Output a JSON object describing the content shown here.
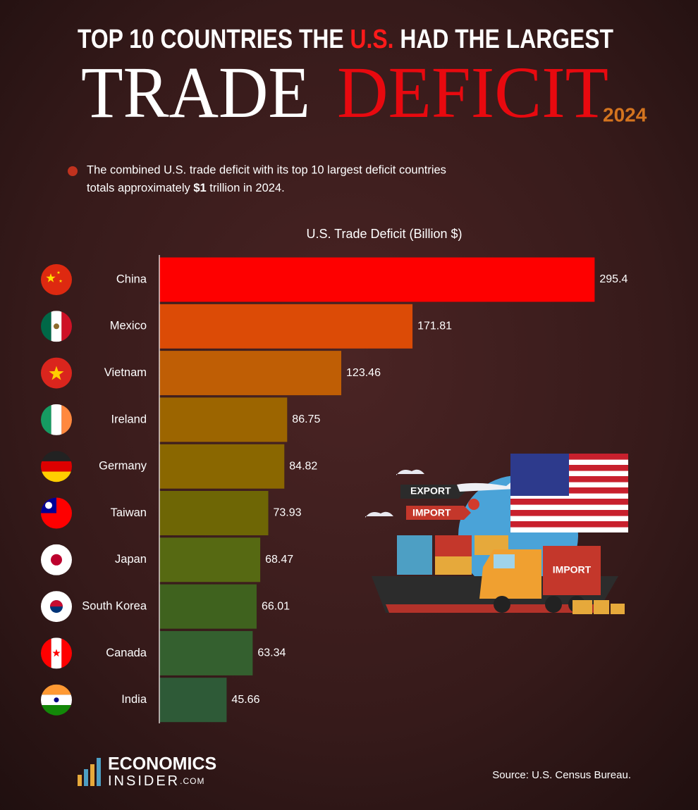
{
  "chart_data": {
    "type": "bar",
    "orientation": "horizontal",
    "title_pre": "TOP 10 COUNTRIES THE",
    "title_highlight": "U.S.",
    "title_post": "HAD THE LARGEST",
    "headline_1": "TRADE",
    "headline_2": "DEFICIT",
    "year": "2024",
    "note_line1": "The combined U.S. trade deficit with its top 10 largest deficit countries",
    "note_line2_pre": "totals approximately",
    "note_bold": "$1",
    "note_line2_post": "trillion in 2024.",
    "axis_label": "U.S. Trade Deficit (Billion $)",
    "categories": [
      "China",
      "Mexico",
      "Vietnam",
      "Ireland",
      "Germany",
      "Taiwan",
      "Japan",
      "South Korea",
      "Canada",
      "India"
    ],
    "values": [
      295.4,
      171.81,
      123.46,
      86.75,
      84.82,
      73.93,
      68.47,
      66.01,
      63.34,
      45.66
    ],
    "colors": [
      "#fe0000",
      "#dc4b06",
      "#bf5e05",
      "#9c6500",
      "#8a6700",
      "#6e6605",
      "#566912",
      "#3f621e",
      "#34602f",
      "#2e5a37"
    ],
    "xlim": [
      0,
      300
    ],
    "illustration_labels": [
      "EXPORT",
      "IMPORT",
      "IMPORT"
    ],
    "logo_line1": "ECONOMICS",
    "logo_line2": "INSIDER",
    "logo_suffix": ".COM",
    "source": "Source: U.S. Census Bureau."
  }
}
